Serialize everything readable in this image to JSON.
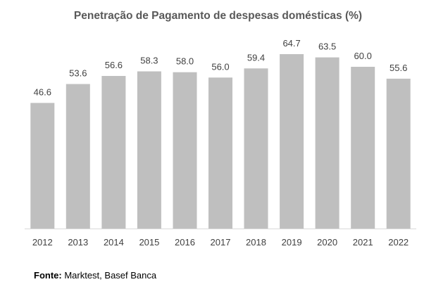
{
  "chart_data": {
    "type": "bar",
    "title": "Penetração de Pagamento de despesas domésticas (%)",
    "categories": [
      "2012",
      "2013",
      "2014",
      "2015",
      "2016",
      "2017",
      "2018",
      "2019",
      "2020",
      "2021",
      "2022"
    ],
    "values": [
      46.6,
      53.6,
      56.6,
      58.3,
      58.0,
      56.0,
      59.4,
      64.7,
      63.5,
      60.0,
      55.6
    ],
    "data_labels": [
      "46.6",
      "53.6",
      "56.6",
      "58.3",
      "58.0",
      "56.0",
      "59.4",
      "64.7",
      "63.5",
      "60.0",
      "55.6"
    ],
    "xlabel": "",
    "ylabel": "",
    "ylim": [
      0,
      64.7
    ],
    "grid": false,
    "legend": "none",
    "colors": {
      "bar": "#bfbfbf",
      "title": "#595959",
      "label": "#404040",
      "axis": "#d9d9d9"
    }
  },
  "source": {
    "label": "Fonte:",
    "text": " Marktest, Basef Banca"
  }
}
